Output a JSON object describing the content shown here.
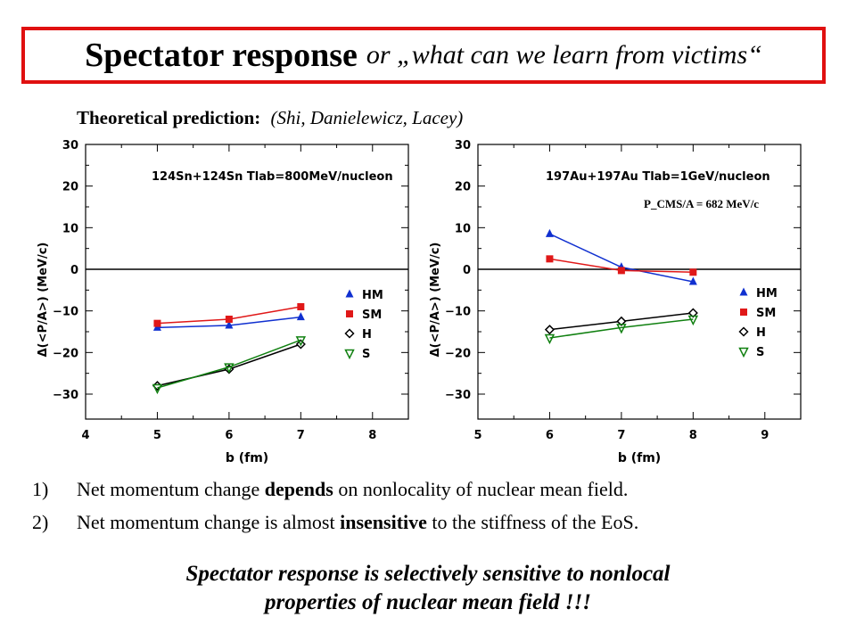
{
  "slide": {
    "title_main": "Spectator response",
    "title_sub": "or „what can we learn from victims“",
    "subtitle_bold": "Theoretical prediction:",
    "subtitle_italic": "(Shi, Danielewicz, Lacey)",
    "bullets": [
      {
        "num": "1)",
        "pre": "Net momentum change ",
        "bold": "depends",
        "post": " on nonlocality of nuclear mean field."
      },
      {
        "num": "2)",
        "pre": "Net momentum change is almost ",
        "bold": "insensitive",
        "post": " to the stiffness of the EoS."
      }
    ],
    "conclusion_line1": "Spectator response is selectively sensitive to nonlocal",
    "conclusion_line2": "properties of nuclear mean field !!!"
  },
  "chart_data": [
    {
      "type": "line",
      "title": "124Sn+124Sn Tlab=800MeV/nucleon",
      "xlabel": "b (fm)",
      "ylabel": "Δ(<P/A>) (MeV/c)",
      "xlim": [
        4,
        8.5
      ],
      "ylim": [
        -36,
        30
      ],
      "xticks": [
        4,
        5,
        6,
        7,
        8
      ],
      "yticks": [
        -30,
        -20,
        -10,
        0,
        10,
        20,
        30
      ],
      "annotation": "",
      "legend_position": "right",
      "x": [
        5,
        6,
        7
      ],
      "series": [
        {
          "name": "HM",
          "marker": "triangle-up",
          "color": "#1030d0",
          "values": [
            -14,
            -13.5,
            -11.5
          ]
        },
        {
          "name": "SM",
          "marker": "square",
          "color": "#e01818",
          "values": [
            -13,
            -12,
            -9
          ]
        },
        {
          "name": "H",
          "marker": "diamond-open",
          "color": "#000000",
          "values": [
            -28,
            -24,
            -18
          ]
        },
        {
          "name": "S",
          "marker": "triangle-down-open",
          "color": "#108010",
          "values": [
            -28.5,
            -23.5,
            -17
          ]
        }
      ]
    },
    {
      "type": "line",
      "title": "197Au+197Au Tlab=1GeV/nucleon",
      "xlabel": "b (fm)",
      "ylabel": "Δ(<P/A>) (MeV/c)",
      "xlim": [
        5,
        9.5
      ],
      "ylim": [
        -36,
        30
      ],
      "xticks": [
        5,
        6,
        7,
        8,
        9
      ],
      "yticks": [
        -30,
        -20,
        -10,
        0,
        10,
        20,
        30
      ],
      "annotation": "P_CMS/A = 682 MeV/c",
      "legend_position": "right",
      "x": [
        6,
        7,
        8
      ],
      "series": [
        {
          "name": "HM",
          "marker": "triangle-up",
          "color": "#1030d0",
          "values": [
            8.5,
            0.5,
            -3
          ]
        },
        {
          "name": "SM",
          "marker": "square",
          "color": "#e01818",
          "values": [
            2.5,
            -0.3,
            -0.7
          ]
        },
        {
          "name": "H",
          "marker": "diamond-open",
          "color": "#000000",
          "values": [
            -14.5,
            -12.5,
            -10.5
          ]
        },
        {
          "name": "S",
          "marker": "triangle-down-open",
          "color": "#108010",
          "values": [
            -16.5,
            -14,
            -12
          ]
        }
      ]
    }
  ]
}
